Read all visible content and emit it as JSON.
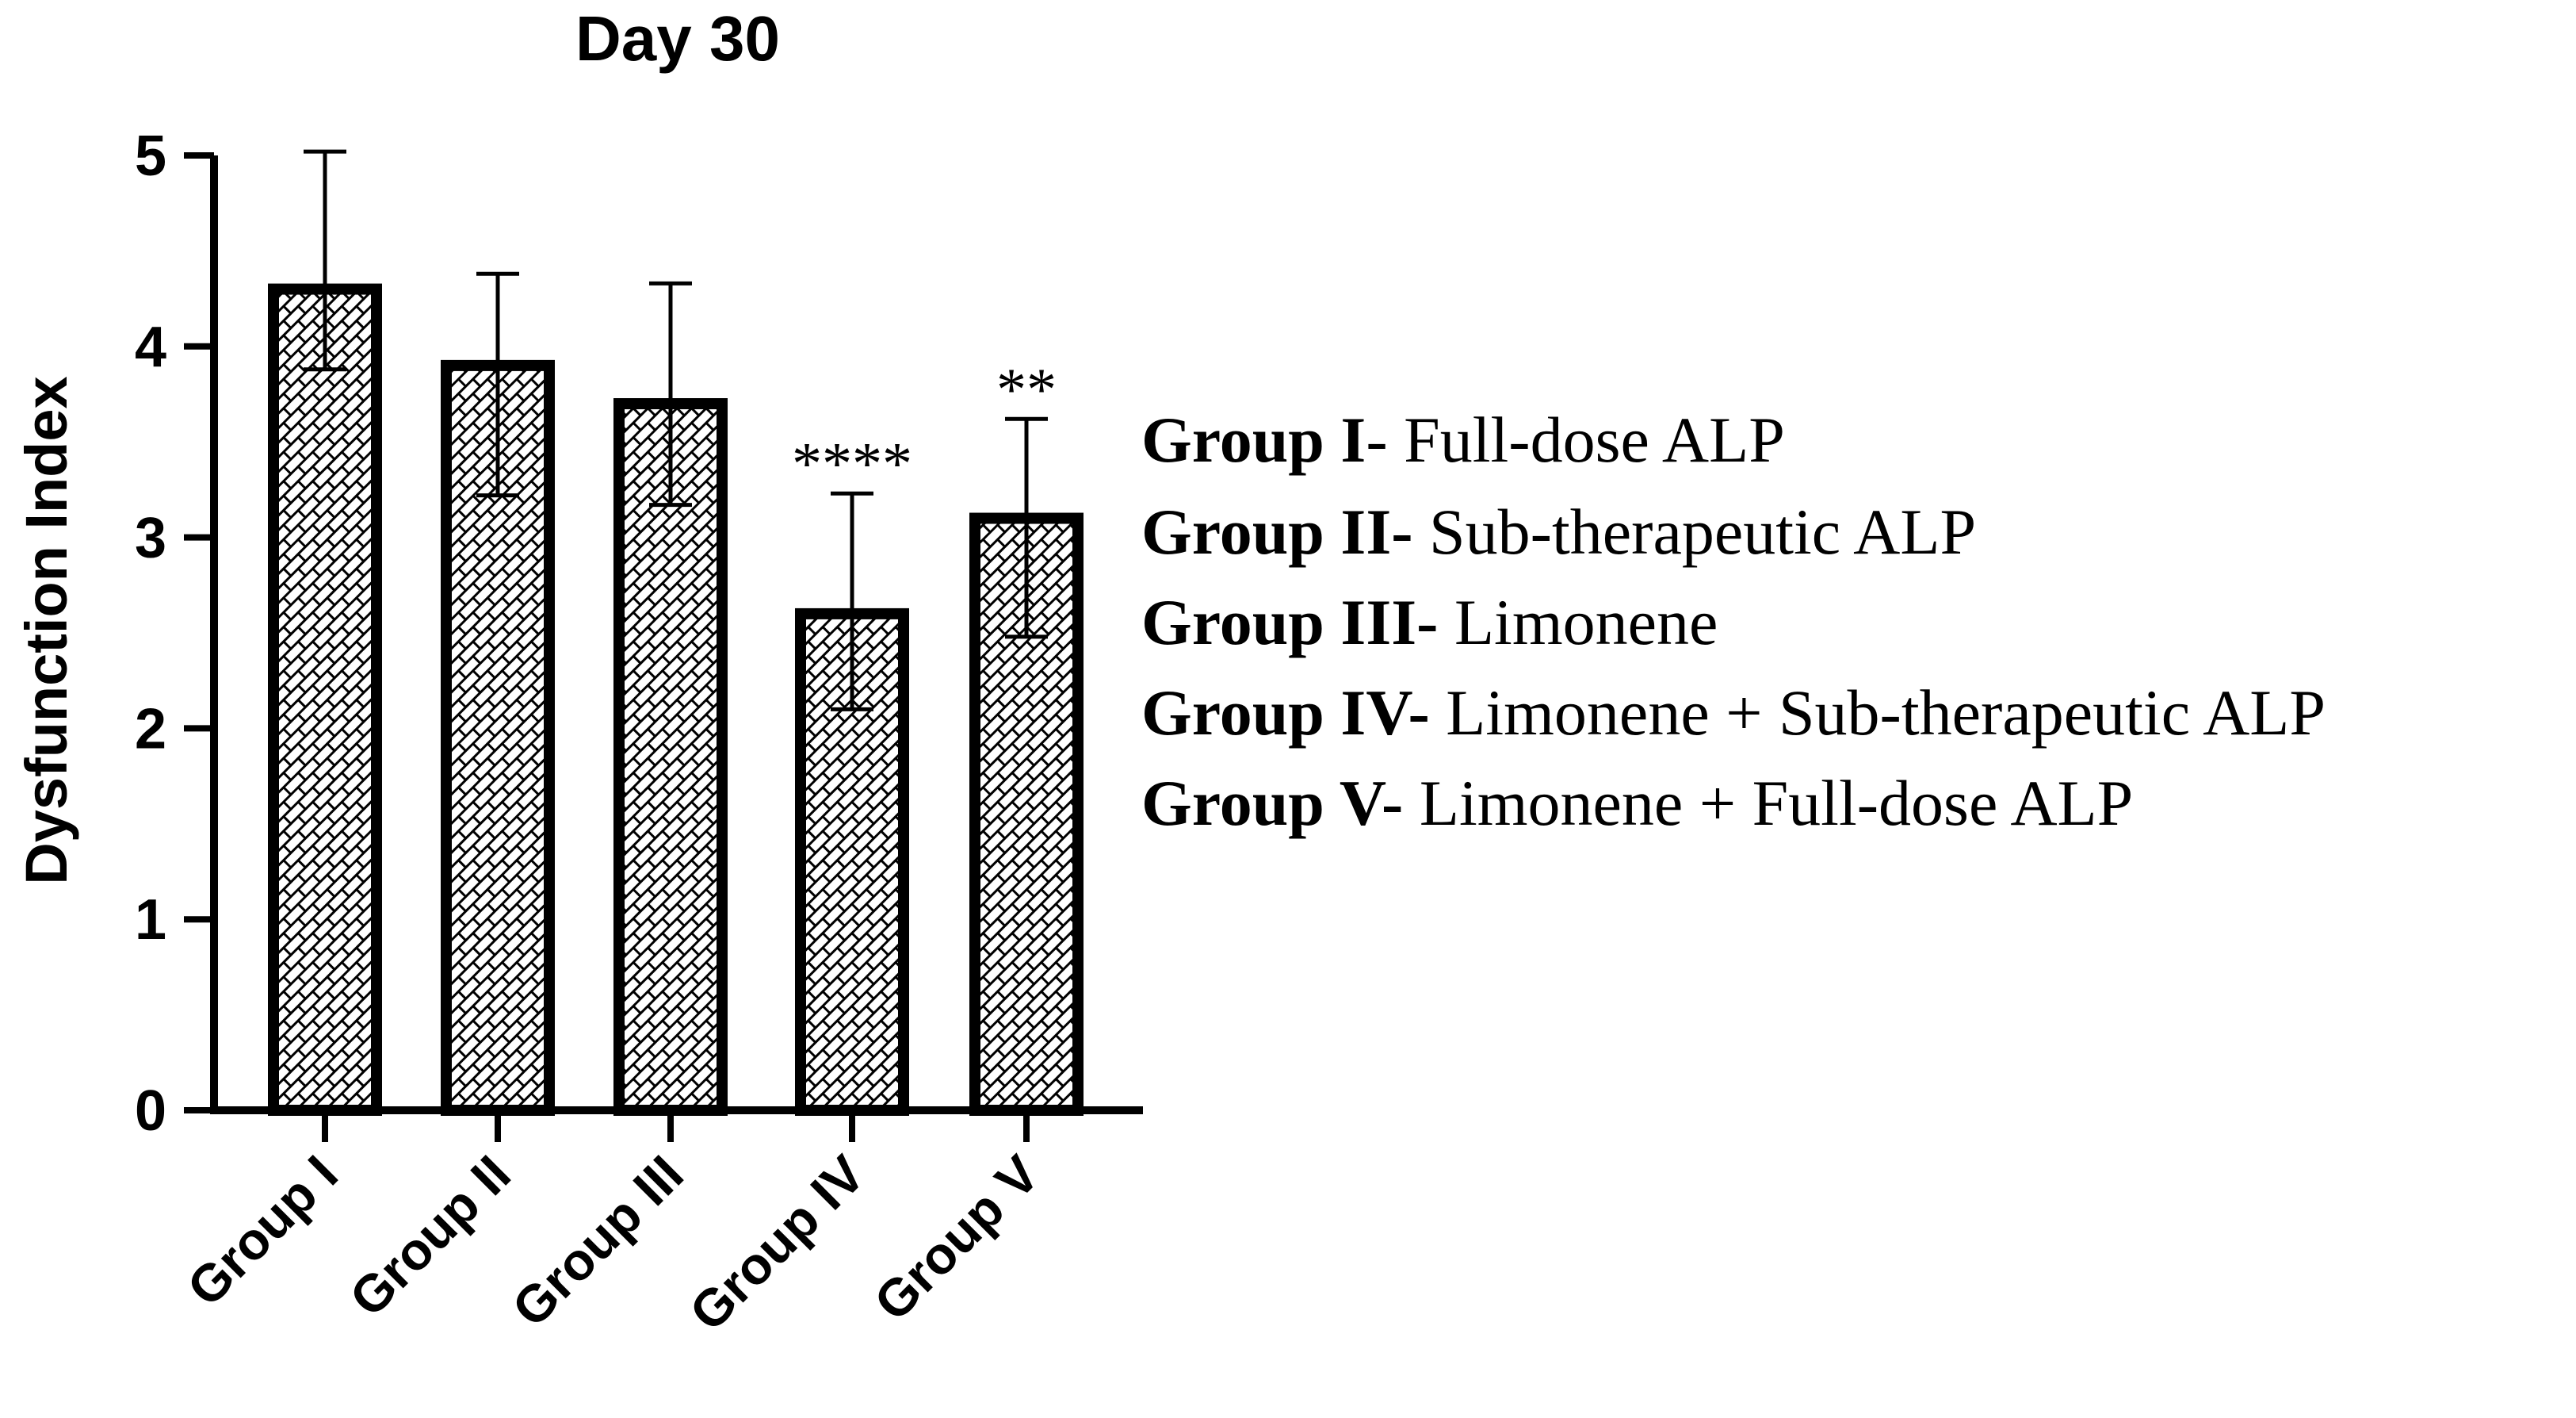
{
  "chart_data": {
    "type": "bar",
    "title": "Day 30",
    "xlabel": "",
    "ylabel": "Dysfunction Index",
    "ylim": [
      0,
      5
    ],
    "yticks": [
      0,
      1,
      2,
      3,
      4,
      5
    ],
    "categories": [
      "Group I",
      "Group II",
      "Group III",
      "Group IV",
      "Group V"
    ],
    "values": [
      4.3,
      3.9,
      3.7,
      2.6,
      3.1
    ],
    "errors": [
      0.72,
      0.48,
      0.63,
      0.63,
      0.52
    ],
    "errors_lower": [
      0.42,
      0.68,
      0.53,
      0.5,
      0.62
    ],
    "significance": [
      "",
      "",
      "",
      "****",
      "**"
    ],
    "bar_fill": "hatched",
    "bar_color": "#000000",
    "grid": false,
    "legend_position": "right",
    "legend": [
      {
        "bold": "Group I",
        "sep": "-",
        "text": " Full-dose ALP"
      },
      {
        "bold": "Group II-",
        "sep": "",
        "text": " Sub-therapeutic ALP"
      },
      {
        "bold": "Group III-",
        "sep": "",
        "text": "  Limonene"
      },
      {
        "bold": "Group IV-",
        "sep": "",
        "text": " Limonene + Sub-therapeutic ALP"
      },
      {
        "bold": "Group V-",
        "sep": "",
        "text": " Limonene + Full-dose ALP"
      }
    ]
  }
}
